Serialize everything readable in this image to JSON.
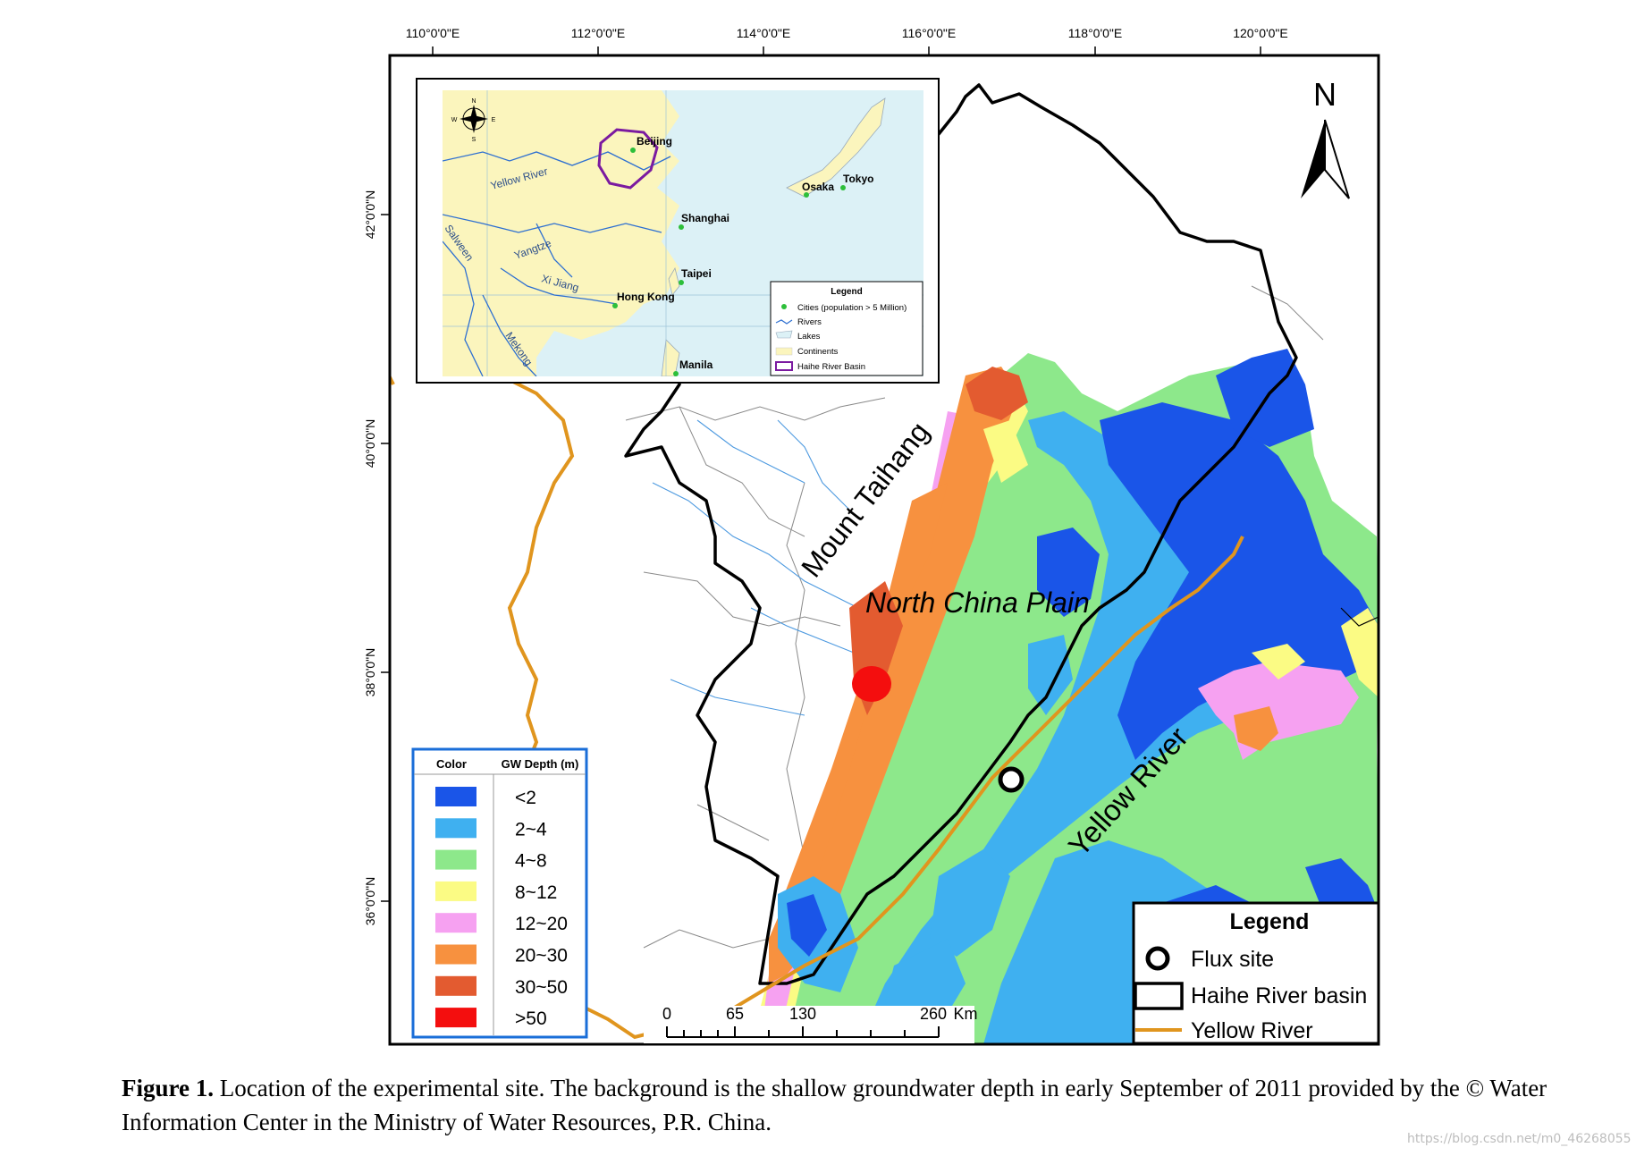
{
  "top_axis_ticks": [
    "110°0'0\"E",
    "112°0'0\"E",
    "114°0'0\"E",
    "116°0'0\"E",
    "118°0'0\"E",
    "120°0'0\"E"
  ],
  "left_axis_ticks": [
    "42°0'0\"N",
    "40°0'0\"N",
    "38°0'0\"N",
    "36°0'0\"N"
  ],
  "north_arrow": "N",
  "place_labels": {
    "mount_taihang": "Mount Taihang",
    "north_china_plain": "North China Plain",
    "yellow_river": "Yellow River"
  },
  "gw_legend": {
    "header_color": "Color",
    "header_depth": "GW Depth (m)",
    "classes": [
      {
        "label": "<2",
        "color": "#1a55e8"
      },
      {
        "label": "2~4",
        "color": "#3fb0f0"
      },
      {
        "label": "4~8",
        "color": "#8de88b"
      },
      {
        "label": "8~12",
        "color": "#fbfb84"
      },
      {
        "label": "12~20",
        "color": "#f6a1f1"
      },
      {
        "label": "20~30",
        "color": "#f7913f"
      },
      {
        "label": "30~50",
        "color": "#e35b30"
      },
      {
        "label": ">50",
        "color": "#f40e0e"
      }
    ]
  },
  "scale_bar": {
    "ticks": [
      "0",
      "65",
      "130",
      "260"
    ],
    "unit": "Km"
  },
  "main_legend": {
    "title": "Legend",
    "items": [
      {
        "label": "Flux site",
        "symbol": "circle"
      },
      {
        "label": "Haihe River basin",
        "symbol": "rectangle-outline"
      },
      {
        "label": "Yellow River",
        "symbol": "line",
        "color": "#e0951e"
      }
    ]
  },
  "inset": {
    "cities": [
      "Beijing",
      "Shanghai",
      "Taipei",
      "Hong Kong",
      "Manila",
      "Osaka",
      "Tokyo"
    ],
    "rivers": [
      "Yellow River",
      "Yangtze",
      "Salween",
      "Xi Jiang",
      "Mekong"
    ],
    "compass_letters": [
      "N",
      "S",
      "W",
      "E"
    ],
    "legend_title": "Legend",
    "legend_items": [
      "Cities (population > 5 Million)",
      "Rivers",
      "Lakes",
      "Continents",
      "Haihe River Basin"
    ],
    "colors": {
      "land": "#fbf5bd",
      "sea": "#dcf1f6",
      "river": "#2d6fd1",
      "basin": "#7b1aa0",
      "city": "#2dbf3a"
    }
  },
  "caption": {
    "label": "Figure 1.",
    "text": " Location of the experimental site. The background is the shallow groundwater depth in early September of 2011 provided by the © Water Information Center in the Ministry of Water Resources, P.R. China."
  },
  "watermark": "https://blog.csdn.net/m0_46268055"
}
